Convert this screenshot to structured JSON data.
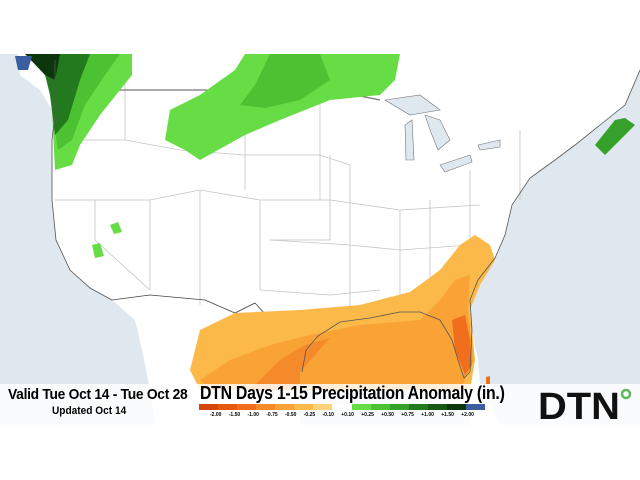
{
  "header": {
    "valid_range": "Valid Tue Oct 14 - Tue Oct 28",
    "updated": "Updated Oct 14",
    "title": "DTN Days 1-15 Precipitation Anomaly (in.)"
  },
  "legend": {
    "tick_labels": [
      "-2.00",
      "-1.50",
      "-1.00",
      "-0.75",
      "-0.50",
      "-0.25",
      "-0.10",
      "+0.10",
      "+0.25",
      "+0.50",
      "+0.75",
      "+1.00",
      "+1.50",
      "+2.00"
    ],
    "colors": [
      "#d4470a",
      "#e55a0e",
      "#f06e1c",
      "#f58a2a",
      "#f9a235",
      "#fbb94a",
      "#fdd27a",
      "#ffffff",
      "#66dd44",
      "#4cc233",
      "#35a02a",
      "#237a1e",
      "#155a12",
      "#0c360c",
      "#3a5ea0"
    ]
  },
  "logo": {
    "text": "DTN"
  },
  "colors": {
    "water": "#dfe7ef",
    "land": "#ffffff",
    "borders": "#bfbfbf",
    "coast": "#333333"
  }
}
